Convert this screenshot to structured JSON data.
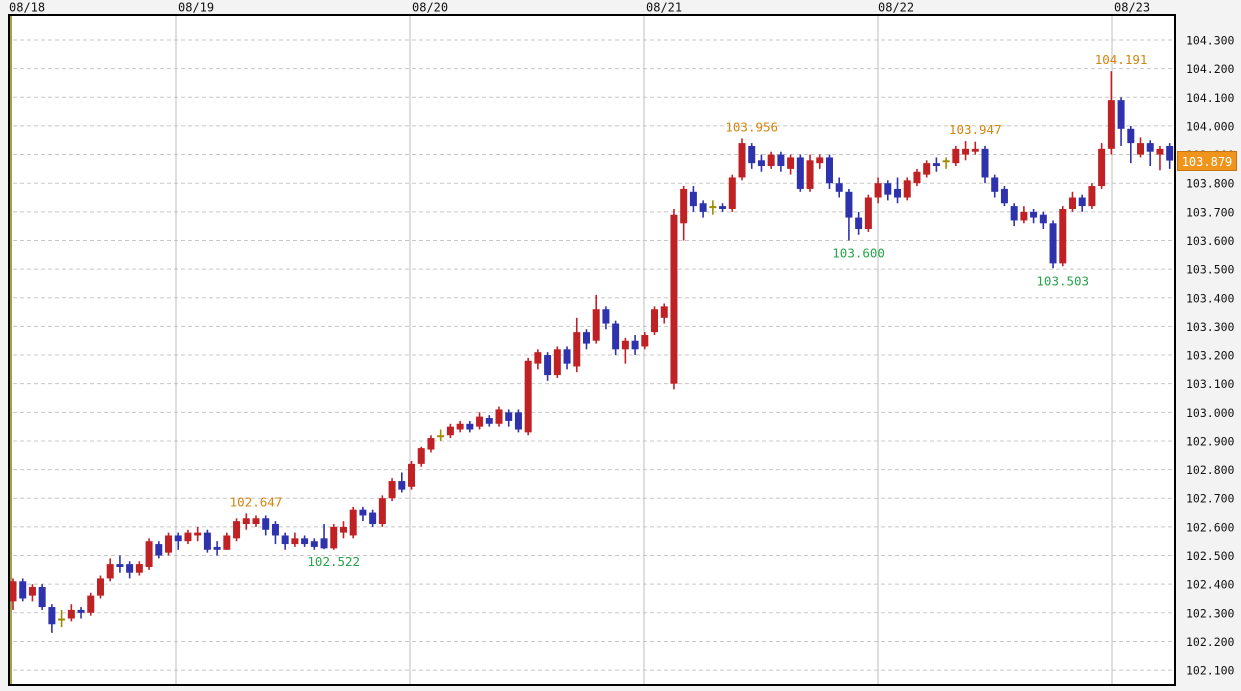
{
  "chart_data": {
    "type": "candlestick",
    "timeframe_visible": "hourly candles, 08/18 through 08/23",
    "date_labels": [
      "08/18",
      "08/19",
      "08/20",
      "08/21",
      "08/22",
      "08/23"
    ],
    "price_axis_labels": [
      "104.300",
      "104.200",
      "104.100",
      "104.000",
      "103.900",
      "103.800",
      "103.700",
      "103.600",
      "103.500",
      "103.400",
      "103.300",
      "103.200",
      "103.100",
      "103.000",
      "102.900",
      "102.800",
      "102.700",
      "102.600",
      "102.500",
      "102.400",
      "102.300",
      "102.200",
      "102.100"
    ],
    "axis": {
      "price_min": 102.1,
      "price_max": 104.3,
      "step": 0.1,
      "grid_horizontal": "dashed",
      "grid_vertical": "solid per day"
    },
    "current_price": {
      "value": 103.879,
      "label": "103.879"
    },
    "annotations": [
      {
        "label": "102.647",
        "value": 102.647,
        "candle_index": 25,
        "placement": "above",
        "role": "swing-high"
      },
      {
        "label": "102.522",
        "value": 102.522,
        "candle_index": 33,
        "placement": "below",
        "role": "swing-low"
      },
      {
        "label": "103.956",
        "value": 103.956,
        "candle_index": 76,
        "placement": "above",
        "role": "swing-high"
      },
      {
        "label": "103.600",
        "value": 103.6,
        "candle_index": 87,
        "placement": "below",
        "role": "swing-low"
      },
      {
        "label": "103.947",
        "value": 103.947,
        "candle_index": 99,
        "placement": "above",
        "role": "swing-high"
      },
      {
        "label": "103.503",
        "value": 103.503,
        "candle_index": 108,
        "placement": "below",
        "role": "swing-low"
      },
      {
        "label": "104.191",
        "value": 104.191,
        "candle_index": 114,
        "placement": "above",
        "role": "swing-high"
      }
    ],
    "colors": {
      "bull_candle": "#c02125",
      "bear_candle": "#2f32ad",
      "doji_candle": "#a08c00",
      "annotation_high": "#d2840e",
      "annotation_low": "#28a34a",
      "badge_bg": "#f0941c",
      "badge_border": "#c87410",
      "badge_text": "#ffffff",
      "grid": "#c8c8c8",
      "day_line": "#bfbfbf",
      "session_line": "#a8a040",
      "border": "#000000",
      "plot_bg": "#ffffff",
      "label_text": "#111111"
    },
    "candles_ohlc_format": "[open, high, low, close]",
    "candles": [
      [
        102.34,
        102.42,
        102.31,
        102.41
      ],
      [
        102.41,
        102.42,
        102.34,
        102.35
      ],
      [
        102.36,
        102.4,
        102.34,
        102.39
      ],
      [
        102.39,
        102.4,
        102.31,
        102.32
      ],
      [
        102.32,
        102.33,
        102.23,
        102.26
      ],
      [
        102.28,
        102.31,
        102.25,
        102.28
      ],
      [
        102.28,
        102.33,
        102.27,
        102.31
      ],
      [
        102.31,
        102.32,
        102.28,
        102.3
      ],
      [
        102.3,
        102.37,
        102.29,
        102.36
      ],
      [
        102.36,
        102.43,
        102.35,
        102.42
      ],
      [
        102.42,
        102.49,
        102.41,
        102.47
      ],
      [
        102.47,
        102.5,
        102.44,
        102.46
      ],
      [
        102.47,
        102.48,
        102.42,
        102.44
      ],
      [
        102.44,
        102.48,
        102.43,
        102.47
      ],
      [
        102.46,
        102.56,
        102.45,
        102.55
      ],
      [
        102.54,
        102.55,
        102.49,
        102.5
      ],
      [
        102.51,
        102.58,
        102.5,
        102.57
      ],
      [
        102.57,
        102.58,
        102.52,
        102.55
      ],
      [
        102.55,
        102.59,
        102.54,
        102.58
      ],
      [
        102.57,
        102.6,
        102.55,
        102.58
      ],
      [
        102.58,
        102.59,
        102.51,
        102.52
      ],
      [
        102.53,
        102.55,
        102.5,
        102.52
      ],
      [
        102.52,
        102.58,
        102.52,
        102.57
      ],
      [
        102.56,
        102.63,
        102.55,
        102.62
      ],
      [
        102.61,
        102.647,
        102.59,
        102.63
      ],
      [
        102.61,
        102.64,
        102.6,
        102.63
      ],
      [
        102.63,
        102.64,
        102.57,
        102.59
      ],
      [
        102.61,
        102.62,
        102.54,
        102.57
      ],
      [
        102.57,
        102.58,
        102.52,
        102.54
      ],
      [
        102.54,
        102.58,
        102.53,
        102.56
      ],
      [
        102.56,
        102.57,
        102.53,
        102.54
      ],
      [
        102.55,
        102.56,
        102.52,
        102.53
      ],
      [
        102.56,
        102.61,
        102.522,
        102.525
      ],
      [
        102.525,
        102.61,
        102.52,
        102.6
      ],
      [
        102.58,
        102.62,
        102.56,
        102.6
      ],
      [
        102.57,
        102.67,
        102.56,
        102.66
      ],
      [
        102.66,
        102.67,
        102.62,
        102.64
      ],
      [
        102.65,
        102.66,
        102.6,
        102.61
      ],
      [
        102.61,
        102.71,
        102.6,
        102.7
      ],
      [
        102.7,
        102.77,
        102.69,
        102.76
      ],
      [
        102.76,
        102.79,
        102.72,
        102.73
      ],
      [
        102.74,
        102.83,
        102.73,
        102.82
      ],
      [
        102.82,
        102.88,
        102.81,
        102.875
      ],
      [
        102.87,
        102.92,
        102.86,
        102.91
      ],
      [
        102.92,
        102.94,
        102.9,
        102.92
      ],
      [
        102.92,
        102.96,
        102.91,
        102.95
      ],
      [
        102.94,
        102.97,
        102.93,
        102.96
      ],
      [
        102.96,
        102.97,
        102.93,
        102.94
      ],
      [
        102.95,
        103.0,
        102.94,
        102.985
      ],
      [
        102.98,
        102.99,
        102.95,
        102.96
      ],
      [
        102.96,
        103.02,
        102.95,
        103.01
      ],
      [
        103.0,
        103.01,
        102.95,
        102.97
      ],
      [
        103.0,
        103.01,
        102.93,
        102.94
      ],
      [
        102.93,
        103.19,
        102.92,
        103.18
      ],
      [
        103.17,
        103.22,
        103.15,
        103.21
      ],
      [
        103.2,
        103.21,
        103.11,
        103.13
      ],
      [
        103.13,
        103.23,
        103.12,
        103.22
      ],
      [
        103.22,
        103.23,
        103.15,
        103.17
      ],
      [
        103.16,
        103.33,
        103.14,
        103.28
      ],
      [
        103.28,
        103.29,
        103.22,
        103.24
      ],
      [
        103.25,
        103.41,
        103.24,
        103.36
      ],
      [
        103.36,
        103.37,
        103.29,
        103.31
      ],
      [
        103.31,
        103.32,
        103.2,
        103.22
      ],
      [
        103.22,
        103.26,
        103.17,
        103.25
      ],
      [
        103.25,
        103.27,
        103.2,
        103.22
      ],
      [
        103.23,
        103.28,
        103.22,
        103.27
      ],
      [
        103.28,
        103.37,
        103.27,
        103.36
      ],
      [
        103.33,
        103.38,
        103.31,
        103.37
      ],
      [
        103.1,
        103.71,
        103.08,
        103.69
      ],
      [
        103.66,
        103.79,
        103.6,
        103.78
      ],
      [
        103.77,
        103.79,
        103.7,
        103.72
      ],
      [
        103.73,
        103.74,
        103.68,
        103.7
      ],
      [
        103.72,
        103.74,
        103.69,
        103.72
      ],
      [
        103.72,
        103.73,
        103.7,
        103.71
      ],
      [
        103.71,
        103.83,
        103.7,
        103.82
      ],
      [
        103.82,
        103.956,
        103.81,
        103.94
      ],
      [
        103.93,
        103.94,
        103.85,
        103.87
      ],
      [
        103.88,
        103.9,
        103.84,
        103.86
      ],
      [
        103.86,
        103.91,
        103.85,
        103.9
      ],
      [
        103.9,
        103.91,
        103.84,
        103.86
      ],
      [
        103.85,
        103.9,
        103.83,
        103.89
      ],
      [
        103.89,
        103.9,
        103.77,
        103.78
      ],
      [
        103.78,
        103.9,
        103.77,
        103.88
      ],
      [
        103.87,
        103.9,
        103.85,
        103.89
      ],
      [
        103.89,
        103.9,
        103.78,
        103.8
      ],
      [
        103.8,
        103.82,
        103.75,
        103.77
      ],
      [
        103.77,
        103.78,
        103.6,
        103.68
      ],
      [
        103.68,
        103.7,
        103.62,
        103.64
      ],
      [
        103.64,
        103.76,
        103.63,
        103.75
      ],
      [
        103.75,
        103.82,
        103.73,
        103.8
      ],
      [
        103.8,
        103.81,
        103.74,
        103.76
      ],
      [
        103.78,
        103.82,
        103.73,
        103.75
      ],
      [
        103.75,
        103.82,
        103.74,
        103.81
      ],
      [
        103.8,
        103.85,
        103.79,
        103.84
      ],
      [
        103.83,
        103.88,
        103.82,
        103.87
      ],
      [
        103.87,
        103.89,
        103.84,
        103.86
      ],
      [
        103.88,
        103.89,
        103.85,
        103.88
      ],
      [
        103.87,
        103.93,
        103.86,
        103.92
      ],
      [
        103.9,
        103.947,
        103.88,
        103.92
      ],
      [
        103.91,
        103.945,
        103.9,
        103.92
      ],
      [
        103.92,
        103.93,
        103.8,
        103.82
      ],
      [
        103.82,
        103.83,
        103.75,
        103.77
      ],
      [
        103.78,
        103.79,
        103.72,
        103.73
      ],
      [
        103.72,
        103.73,
        103.65,
        103.67
      ],
      [
        103.67,
        103.72,
        103.66,
        103.7
      ],
      [
        103.7,
        103.71,
        103.66,
        103.68
      ],
      [
        103.69,
        103.7,
        103.64,
        103.66
      ],
      [
        103.66,
        103.67,
        103.503,
        103.52
      ],
      [
        103.52,
        103.72,
        103.51,
        103.71
      ],
      [
        103.71,
        103.77,
        103.7,
        103.75
      ],
      [
        103.75,
        103.76,
        103.7,
        103.72
      ],
      [
        103.72,
        103.8,
        103.71,
        103.79
      ],
      [
        103.79,
        103.94,
        103.78,
        103.92
      ],
      [
        103.92,
        104.191,
        103.9,
        104.09
      ],
      [
        104.09,
        104.1,
        103.93,
        103.99
      ],
      [
        103.99,
        104.0,
        103.87,
        103.94
      ],
      [
        103.9,
        103.96,
        103.89,
        103.94
      ],
      [
        103.94,
        103.95,
        103.86,
        103.91
      ],
      [
        103.9,
        103.93,
        103.845,
        103.92
      ],
      [
        103.93,
        103.94,
        103.85,
        103.879
      ]
    ]
  }
}
